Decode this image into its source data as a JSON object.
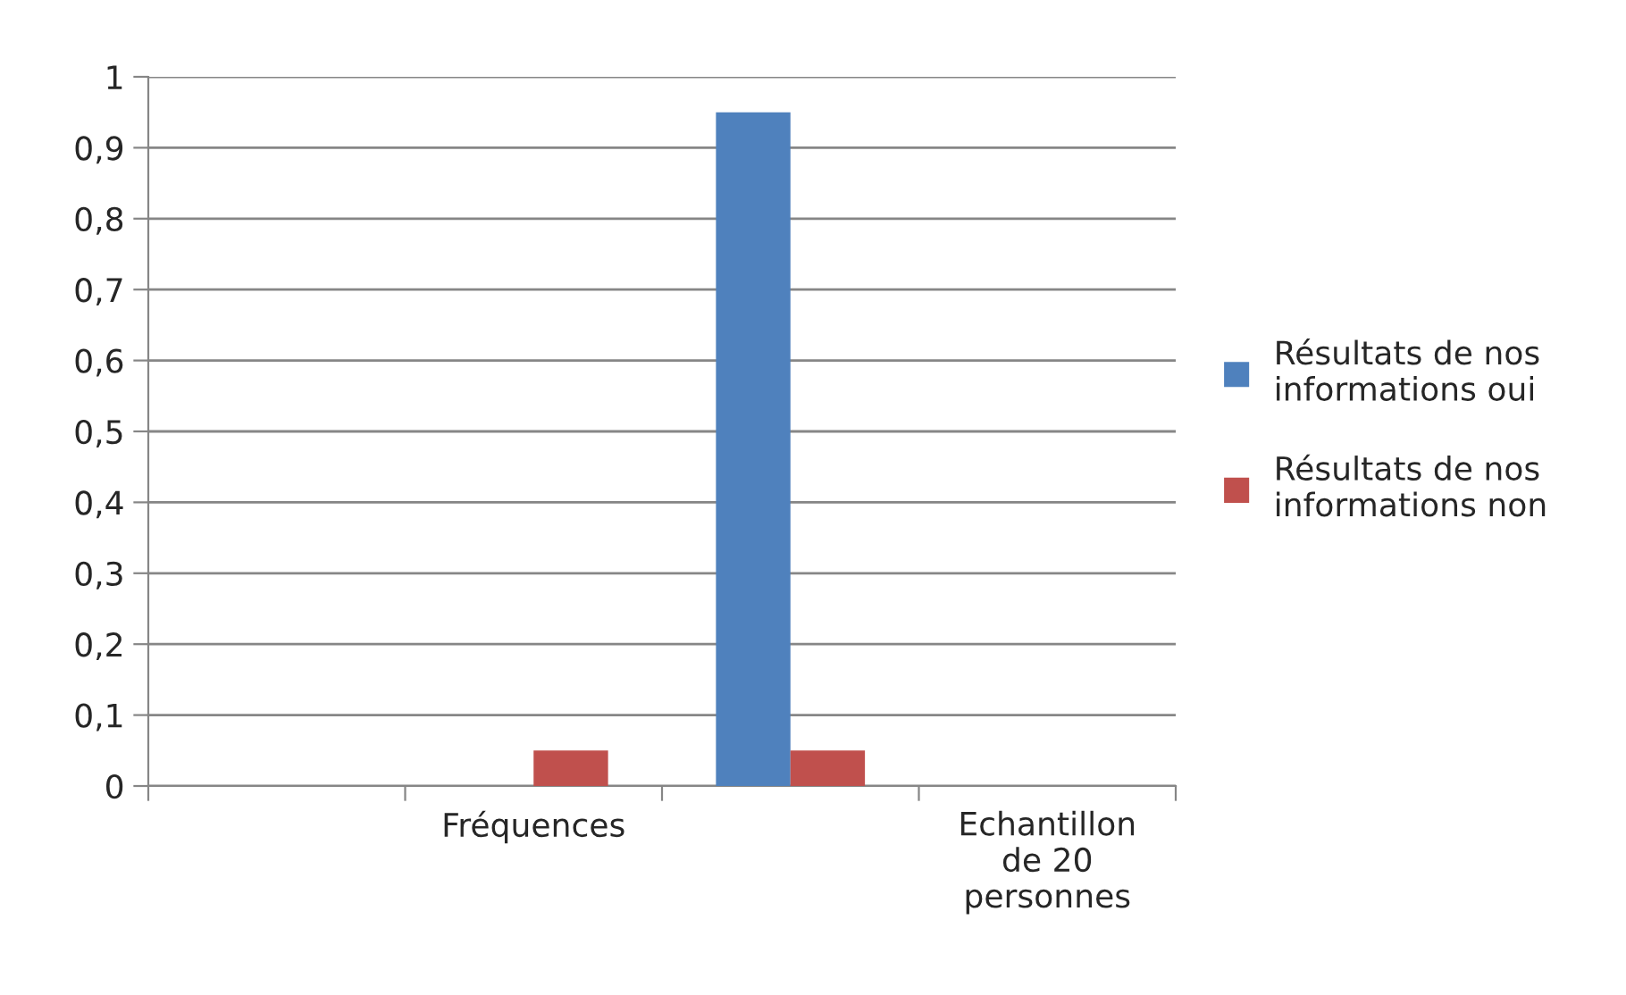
{
  "chart_data": {
    "type": "bar",
    "categories": [
      null,
      "Fréquences",
      null,
      "Echantillon de 20 personnes"
    ],
    "series": [
      {
        "name": "Résultats de nos informations oui",
        "color": "#4f81bd",
        "values": [
          null,
          null,
          0.95,
          null
        ]
      },
      {
        "name": "Résultats de nos informations non",
        "color": "#c0504d",
        "values": [
          null,
          0.05,
          0.05,
          null
        ]
      }
    ],
    "ylim": [
      0,
      1
    ],
    "yticks": [
      {
        "value": 0,
        "label": "0"
      },
      {
        "value": 0.1,
        "label": "0,1"
      },
      {
        "value": 0.2,
        "label": "0,2"
      },
      {
        "value": 0.3,
        "label": "0,3"
      },
      {
        "value": 0.4,
        "label": "0,4"
      },
      {
        "value": 0.5,
        "label": "0,5"
      },
      {
        "value": 0.6,
        "label": "0,6"
      },
      {
        "value": 0.7,
        "label": "0,7"
      },
      {
        "value": 0.8,
        "label": "0,8"
      },
      {
        "value": 0.9,
        "label": "0,9"
      },
      {
        "value": 1,
        "label": "1"
      }
    ],
    "grid": "y",
    "legend": "right"
  }
}
